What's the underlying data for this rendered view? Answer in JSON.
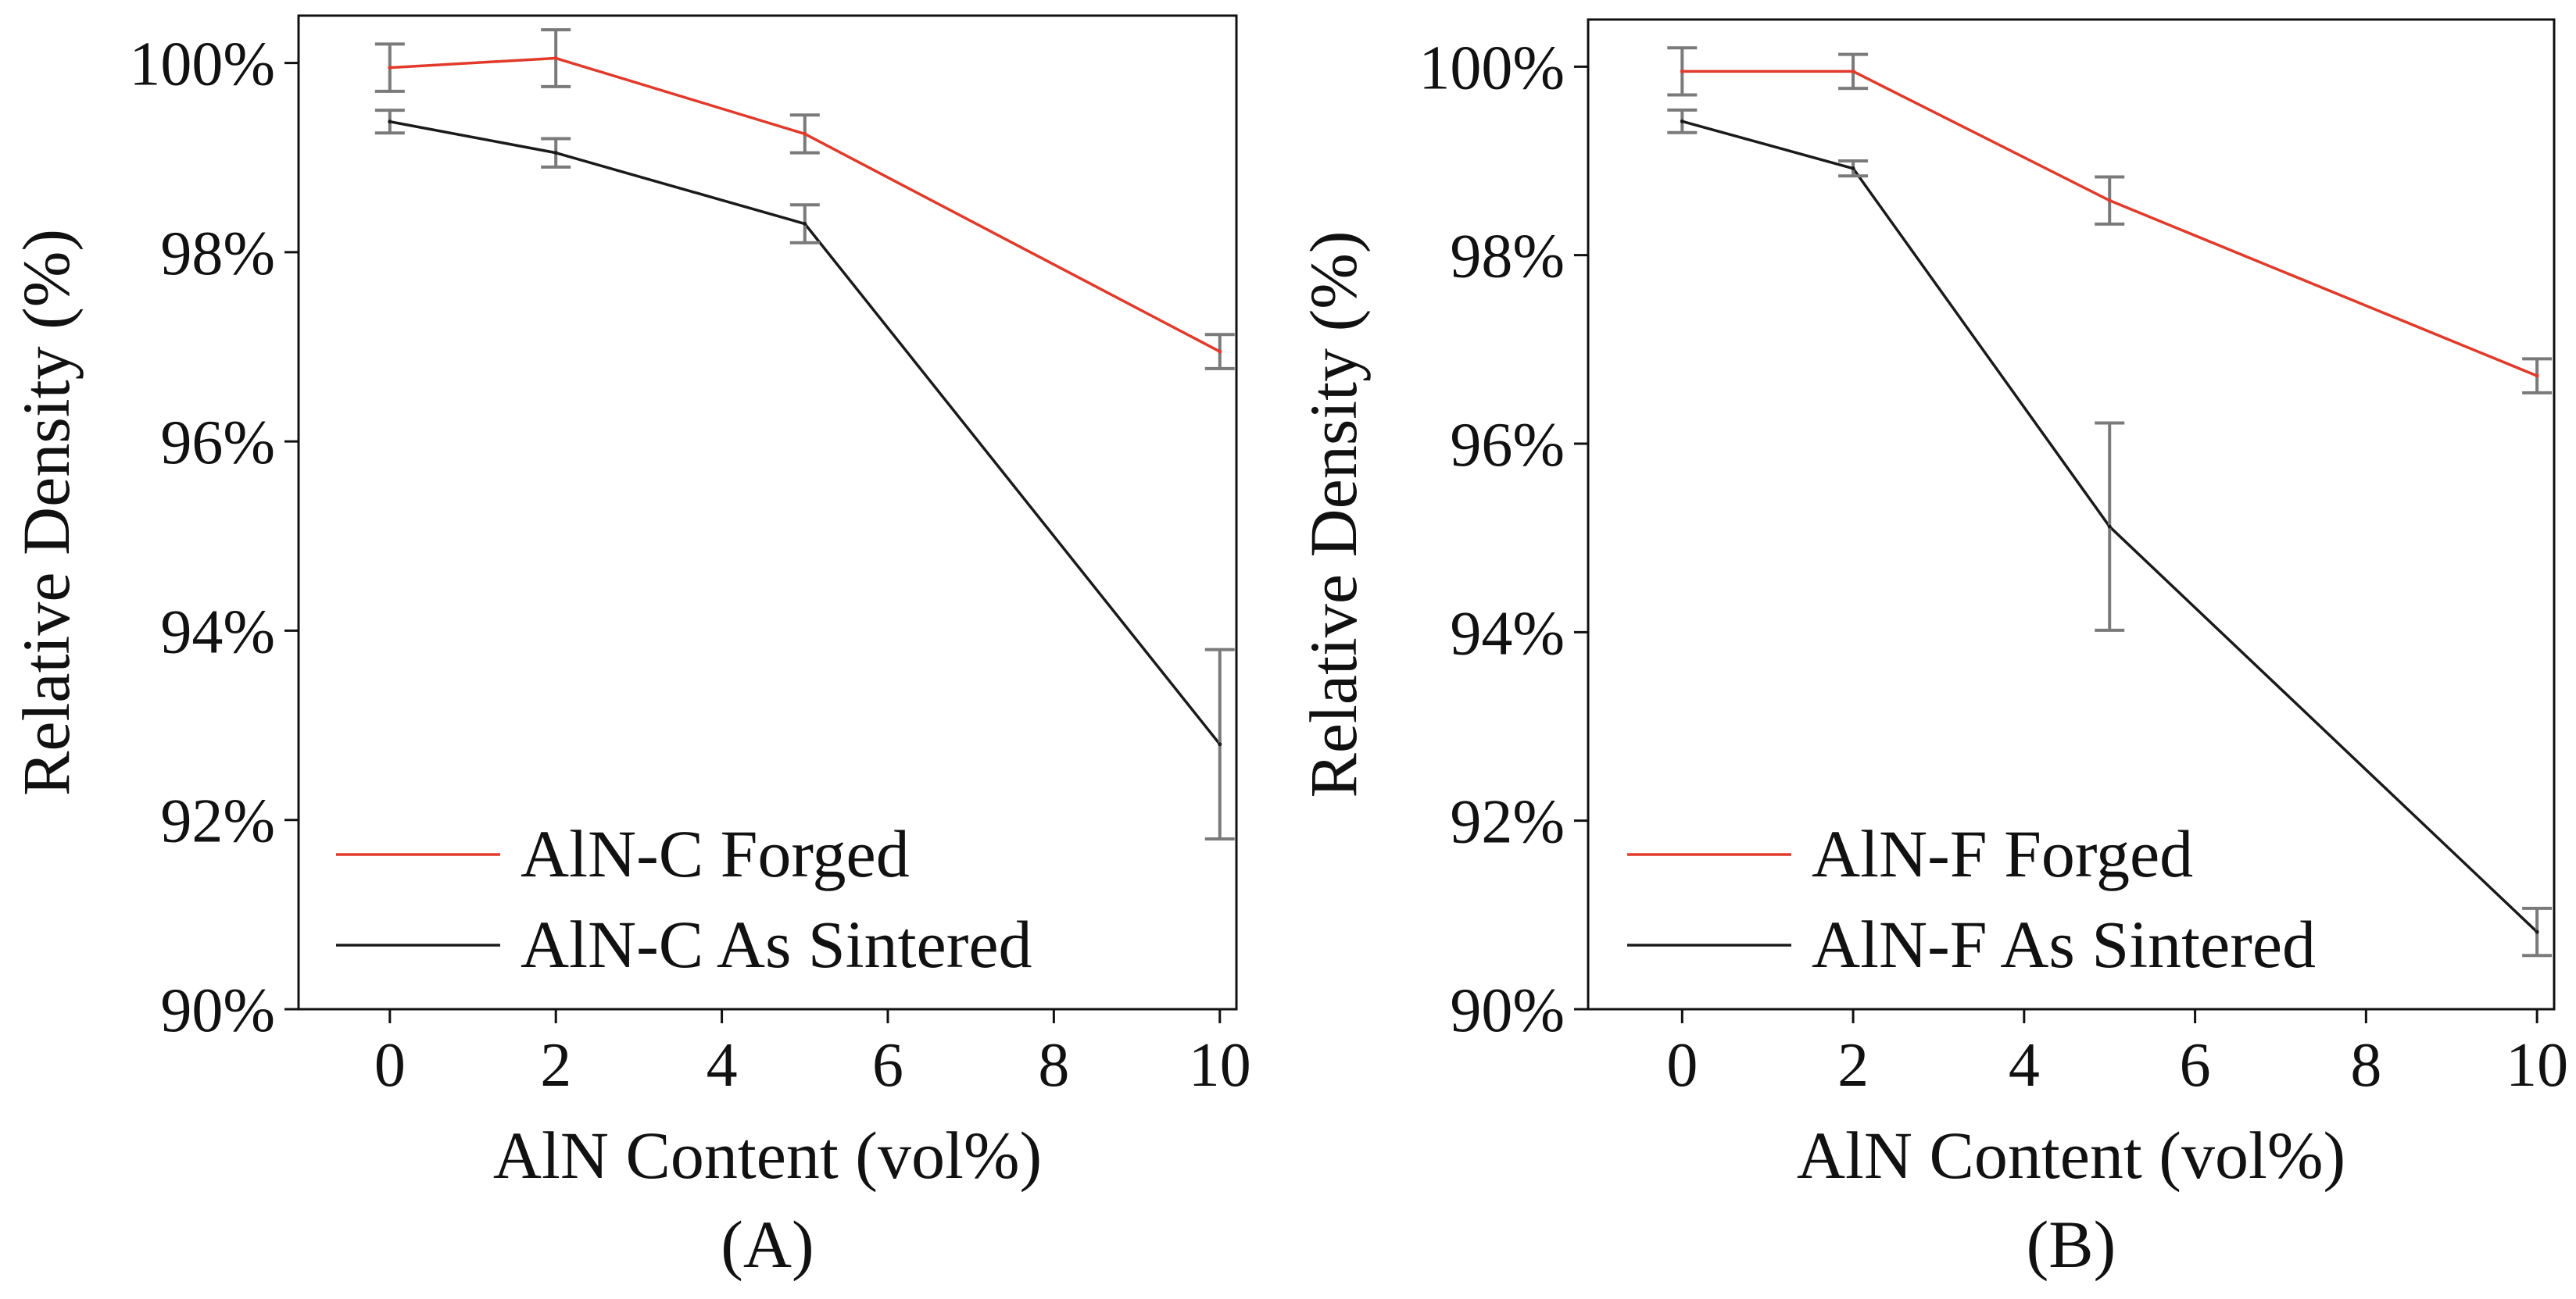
{
  "colors": {
    "forged": "#e23a2a",
    "sintered": "#1a1a1a",
    "errorbar": "#7a7a7a",
    "axis": "#111111"
  },
  "chart_data": [
    {
      "type": "line",
      "panel_label": "(A)",
      "xlabel": "AlN Content (vol%)",
      "ylabel": "Relative  Density (%)",
      "x": [
        0,
        2,
        5,
        10
      ],
      "xlim": [
        -1.1,
        10.2
      ],
      "ylim": [
        90,
        100.5
      ],
      "xticks": [
        0,
        2,
        4,
        6,
        8,
        10
      ],
      "yticks": [
        90,
        92,
        94,
        96,
        98,
        100
      ],
      "ytick_labels": [
        "90%",
        "92%",
        "94%",
        "96%",
        "98%",
        "100%"
      ],
      "legend_position": "bottom-left",
      "series": [
        {
          "name": "AlN-C Forged",
          "color_key": "forged",
          "values": [
            99.95,
            100.05,
            99.25,
            96.95
          ],
          "errors": [
            0.25,
            0.3,
            0.2,
            0.18
          ]
        },
        {
          "name": "AlN-C As Sintered",
          "color_key": "sintered",
          "values": [
            99.38,
            99.05,
            98.3,
            92.8
          ],
          "errors": [
            0.12,
            0.15,
            0.2,
            1.0
          ]
        }
      ]
    },
    {
      "type": "line",
      "panel_label": "(B)",
      "xlabel": "AlN Content (vol%)",
      "ylabel": "Relative  Density (%)",
      "x": [
        0,
        2,
        5,
        10
      ],
      "xlim": [
        -1.1,
        10.2
      ],
      "ylim": [
        90,
        100.5
      ],
      "xticks": [
        0,
        2,
        4,
        6,
        8,
        10
      ],
      "yticks": [
        90,
        92,
        94,
        96,
        98,
        100
      ],
      "ytick_labels": [
        "90%",
        "92%",
        "94%",
        "96%",
        "98%",
        "100%"
      ],
      "legend_position": "bottom-left",
      "series": [
        {
          "name": "AlN-F Forged",
          "color_key": "forged",
          "values": [
            99.95,
            99.95,
            98.58,
            96.72
          ],
          "errors": [
            0.25,
            0.18,
            0.25,
            0.18
          ]
        },
        {
          "name": "AlN-F As Sintered",
          "color_key": "sintered",
          "values": [
            99.42,
            98.92,
            95.12,
            90.82
          ],
          "errors": [
            0.12,
            0.08,
            1.1,
            0.25
          ]
        }
      ]
    }
  ]
}
